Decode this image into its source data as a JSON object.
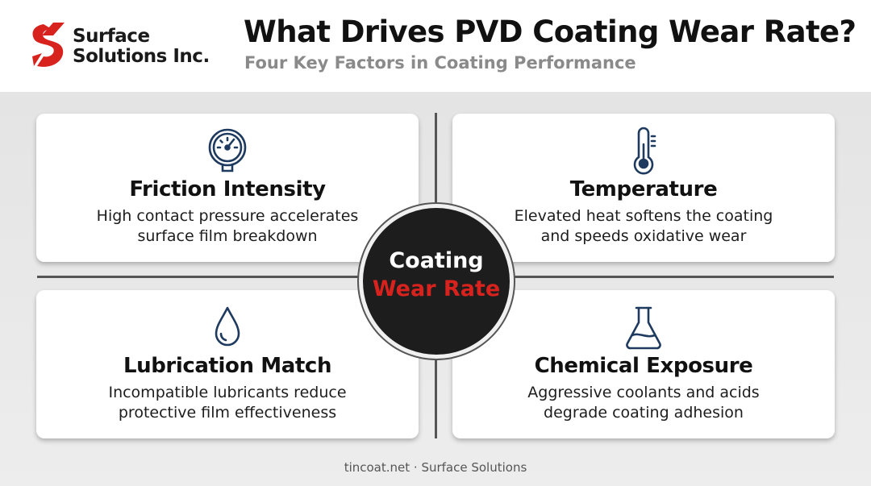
{
  "brand": {
    "line1": "Surface",
    "line2": "Solutions Inc.",
    "accent_color": "#d8221e",
    "logo_icon": "s-logo-icon"
  },
  "header": {
    "title": "What Drives PVD Coating Wear Rate?",
    "subtitle": "Four Key Factors in Coating Performance"
  },
  "center": {
    "line1": "Coating",
    "line2": "Wear Rate"
  },
  "factors": [
    {
      "icon": "pressure-gauge-icon",
      "title": "Friction Intensity",
      "desc_line1": "High contact pressure accelerates",
      "desc_line2": "surface film breakdown"
    },
    {
      "icon": "thermometer-icon",
      "title": "Temperature",
      "desc_line1": "Elevated heat softens the coating",
      "desc_line2": "and speeds oxidative wear"
    },
    {
      "icon": "droplet-icon",
      "title": "Lubrication Match",
      "desc_line1": "Incompatible lubricants reduce",
      "desc_line2": "protective film effectiveness"
    },
    {
      "icon": "flask-icon",
      "title": "Chemical Exposure",
      "desc_line1": "Aggressive coolants and acids",
      "desc_line2": "degrade coating adhesion"
    }
  ],
  "footer": {
    "text": "tincoat.net · Surface Solutions"
  }
}
